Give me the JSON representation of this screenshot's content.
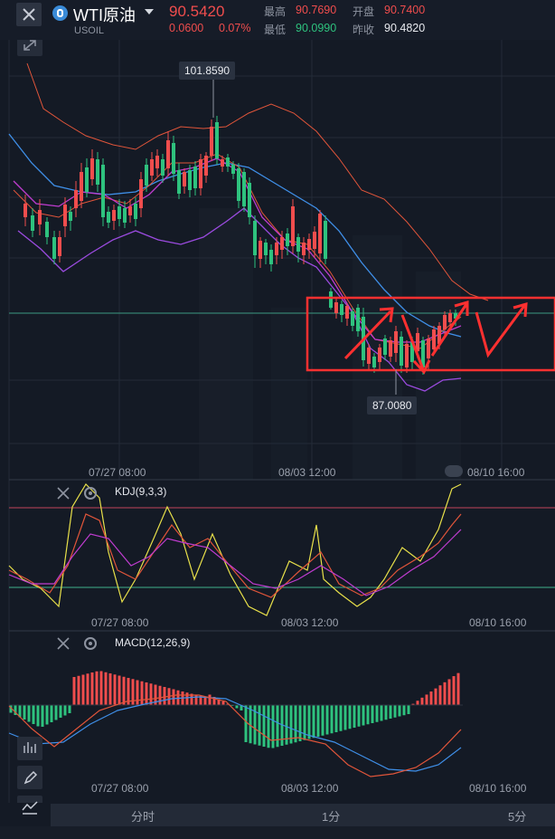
{
  "header": {
    "symbol_name": "WTI原油",
    "symbol_code": "USOIL",
    "price": "90.5420",
    "change": "0.0600",
    "change_pct": "0.07%",
    "stats": {
      "high_label": "最高",
      "high_value": "90.7690",
      "open_label": "开盘",
      "open_value": "90.7400",
      "low_label": "最低",
      "low_value": "90.0990",
      "prev_close_label": "昨收",
      "prev_close_value": "90.4820"
    }
  },
  "main_chart": {
    "max_tag": "101.8590",
    "min_tag": "87.0080",
    "time_labels": [
      "07/27 08:00",
      "08/03 12:00",
      "08/10 16:00"
    ]
  },
  "kdj_panel": {
    "label": "KDJ(9,3,3)",
    "time_labels": [
      "07/27 08:00",
      "08/03 12:00",
      "08/10 16:00"
    ]
  },
  "macd_panel": {
    "label": "MACD(12,26,9)",
    "time_labels": [
      "07/27 08:00",
      "08/03 12:00",
      "08/10 16:00"
    ]
  },
  "timeframe_tabs": [
    "分时",
    "1分",
    "5分"
  ],
  "colors": {
    "up": "#f04d4d",
    "down": "#2ec27e",
    "annotation": "#ff3030",
    "background": "#141a25"
  },
  "icons": [
    "close-icon",
    "oil-symbol-icon",
    "dropdown-caret-icon",
    "expand-icon",
    "settings-gear-icon",
    "draw-pen-icon",
    "indicator-icon"
  ]
}
